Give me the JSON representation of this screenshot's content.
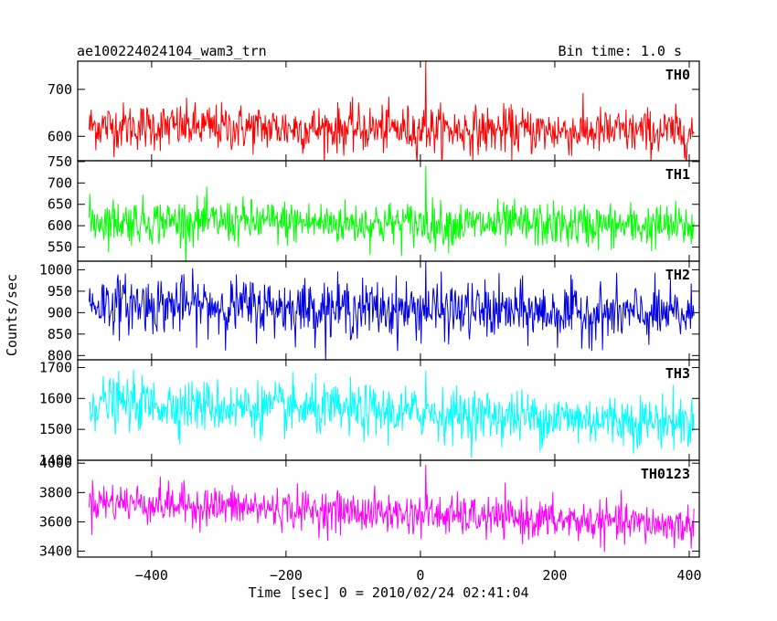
{
  "header": {
    "left_title": "ae100224024104_wam3_trn",
    "right_title": "Bin time: 1.0 s"
  },
  "ylabel": "Counts/sec",
  "xlabel": "Time [sec] 0 = 2010/02/24 02:41:04",
  "chart_data": {
    "type": "line",
    "x_range": [
      -510,
      415
    ],
    "x_ticks": [
      -400,
      -200,
      0,
      200,
      400
    ],
    "x_tick_labels": [
      "−400",
      "−200",
      "0",
      "200",
      "400"
    ],
    "bin_time_s": 1.0,
    "panels": [
      {
        "label": "TH0",
        "color": "#ff0000",
        "ylim": [
          548,
          760
        ],
        "yticks": [
          600,
          700
        ],
        "ytick_labels": [
          "600",
          "700"
        ],
        "x_start": -493,
        "x_end": 407,
        "mean_start": 622,
        "mean_end": 608,
        "noise_sigma": 25,
        "spike": {
          "x": 8,
          "value": 760
        }
      },
      {
        "label": "TH1",
        "color": "#00ff00",
        "ylim": [
          517,
          752
        ],
        "yticks": [
          550,
          600,
          650,
          700,
          750
        ],
        "ytick_labels": [
          "550",
          "600",
          "650",
          "700",
          "750"
        ],
        "x_start": -493,
        "x_end": 407,
        "mean_start": 612,
        "mean_end": 598,
        "noise_sigma": 26,
        "spike": {
          "x": 8,
          "value": 740
        }
      },
      {
        "label": "TH2",
        "color": "#0000e0",
        "ylim": [
          790,
          1020
        ],
        "yticks": [
          800,
          850,
          900,
          950,
          1000
        ],
        "ytick_labels": [
          "800",
          "850",
          "900",
          "950",
          "1000"
        ],
        "x_start": -493,
        "x_end": 407,
        "mean_start": 922,
        "mean_end": 893,
        "noise_sigma": 33,
        "spike": {
          "x": 8,
          "value": 1020
        }
      },
      {
        "label": "TH3",
        "color": "#00ffff",
        "ylim": [
          1400,
          1725
        ],
        "yticks": [
          1400,
          1500,
          1600,
          1700
        ],
        "ytick_labels": [
          "1400",
          "1500",
          "1600",
          "1700"
        ],
        "x_start": -493,
        "x_end": 407,
        "mean_start": 1588,
        "mean_end": 1522,
        "noise_sigma": 42,
        "spike": {
          "x": 8,
          "value": 1690
        }
      },
      {
        "label": "TH0123",
        "color": "#ff00ff",
        "ylim": [
          3360,
          4020
        ],
        "yticks": [
          3400,
          3600,
          3800,
          4000
        ],
        "ytick_labels": [
          "3400",
          "3600",
          "3800",
          "4000"
        ],
        "x_start": -493,
        "x_end": 407,
        "mean_start": 3742,
        "mean_end": 3572,
        "noise_sigma": 68,
        "spike": {
          "x": 8,
          "value": 3990
        }
      }
    ]
  }
}
